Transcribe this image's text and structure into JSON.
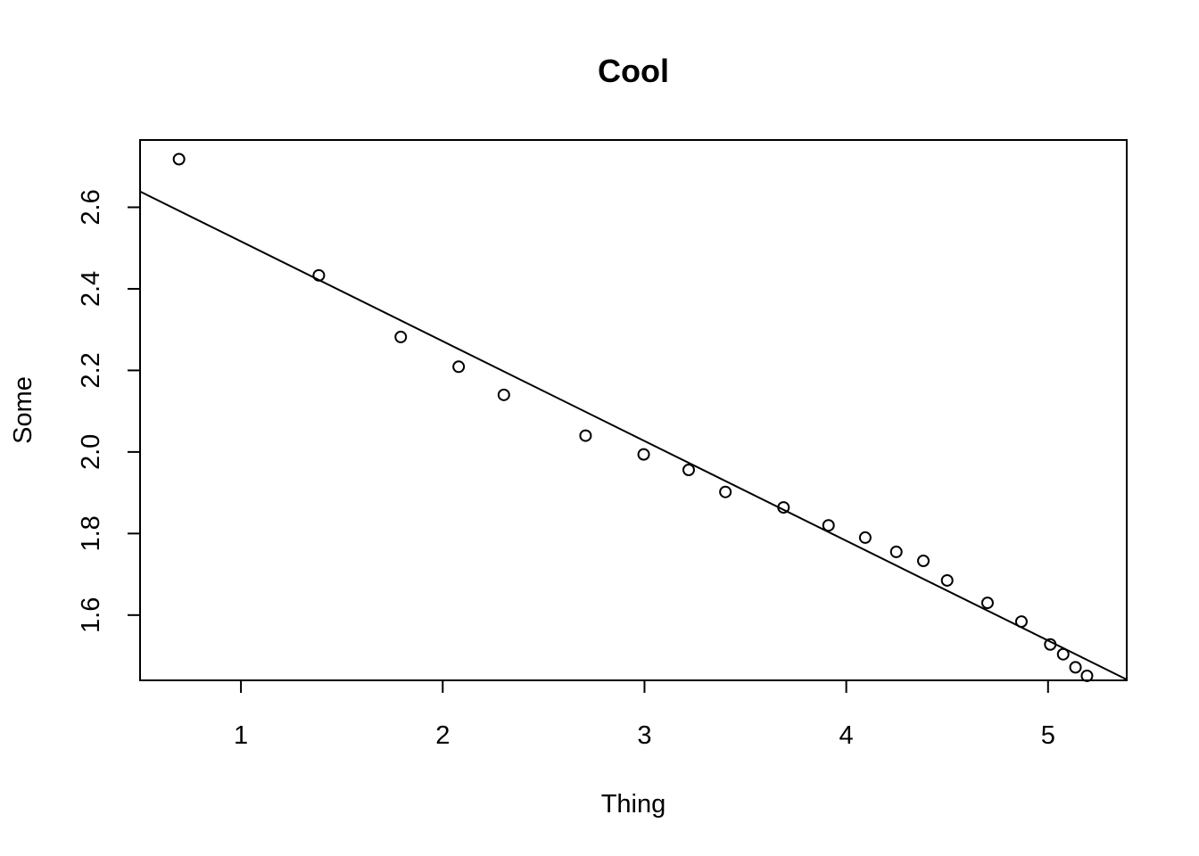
{
  "chart_data": {
    "type": "scatter",
    "title": "Cool",
    "xlabel": "Thing",
    "ylabel": "Some",
    "xlim": [
      0.5,
      5.39
    ],
    "ylim": [
      1.44,
      2.765
    ],
    "x_ticks": [
      1,
      2,
      3,
      4,
      5
    ],
    "x_tick_labels": [
      "1",
      "2",
      "3",
      "4",
      "5"
    ],
    "y_ticks": [
      1.6,
      1.8,
      2.0,
      2.2,
      2.4,
      2.6
    ],
    "y_tick_labels": [
      "1.6",
      "1.8",
      "2.0",
      "2.2",
      "2.4",
      "2.6"
    ],
    "grid": false,
    "legend": "none",
    "points": {
      "x": [
        0.693,
        1.386,
        1.792,
        2.079,
        2.303,
        2.708,
        2.996,
        3.219,
        3.401,
        3.689,
        3.912,
        4.094,
        4.248,
        4.382,
        4.5,
        4.7,
        4.868,
        5.011,
        5.075,
        5.136,
        5.193
      ],
      "y": [
        2.718,
        2.433,
        2.282,
        2.209,
        2.14,
        2.04,
        1.994,
        1.956,
        1.902,
        1.864,
        1.82,
        1.79,
        1.755,
        1.733,
        1.685,
        1.63,
        1.584,
        1.528,
        1.504,
        1.472,
        1.451
      ]
    },
    "fit_line": {
      "intercept": 2.761,
      "slope": -0.2447
    },
    "colors": {
      "points": "#000000",
      "line": "#000000",
      "frame": "#000000",
      "background": "#ffffff"
    }
  }
}
